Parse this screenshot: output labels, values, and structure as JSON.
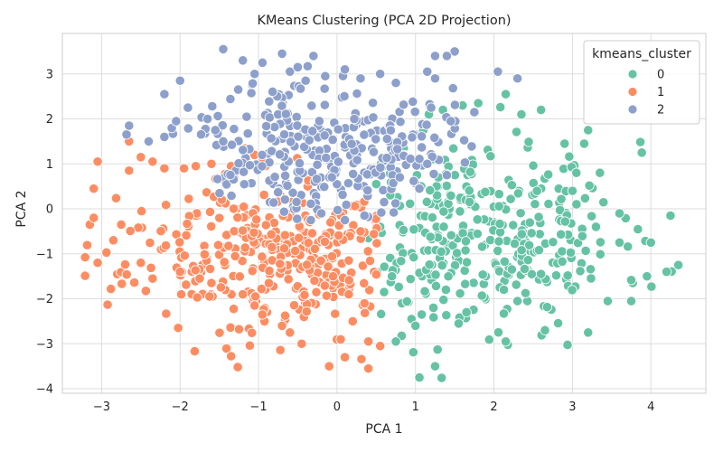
{
  "chart_data": {
    "type": "scatter",
    "title": "KMeans Clustering (PCA 2D Projection)",
    "xlabel": "PCA 1",
    "ylabel": "PCA 2",
    "xlim": [
      -3.5,
      4.7
    ],
    "ylim": [
      -4.1,
      3.9
    ],
    "xticks": [
      -3,
      -2,
      -1,
      0,
      1,
      2,
      3,
      4
    ],
    "yticks": [
      -4,
      -3,
      -2,
      -1,
      0,
      1,
      2,
      3
    ],
    "grid": true,
    "legend": {
      "title": "kmeans_cluster",
      "placement": "top-right"
    },
    "series": [
      {
        "name": "0",
        "color": "#66c2a5",
        "center": [
          1.9,
          -0.6
        ],
        "spread": [
          0.85,
          1.05
        ],
        "count": 330,
        "seed": 11,
        "points": [
          [
            1.05,
            -3.75
          ],
          [
            1.25,
            -3.5
          ],
          [
            0.75,
            -2.95
          ],
          [
            1.55,
            -2.55
          ],
          [
            2.15,
            -2.95
          ],
          [
            2.65,
            -2.7
          ],
          [
            3.2,
            -2.75
          ],
          [
            3.45,
            -2.05
          ],
          [
            3.75,
            -2.05
          ],
          [
            3.95,
            -1.5
          ],
          [
            4.2,
            -1.4
          ],
          [
            4.35,
            -1.25
          ],
          [
            4.0,
            -0.75
          ],
          [
            3.6,
            -0.75
          ],
          [
            3.3,
            -0.4
          ],
          [
            3.6,
            -0.1
          ],
          [
            4.25,
            -0.15
          ],
          [
            3.0,
            0.4
          ],
          [
            3.05,
            0.8
          ],
          [
            3.35,
            0.8
          ],
          [
            3.2,
            1.75
          ],
          [
            3.15,
            1.45
          ],
          [
            2.9,
            1.45
          ],
          [
            2.6,
            2.2
          ],
          [
            2.35,
            2.1
          ],
          [
            2.15,
            2.55
          ],
          [
            1.8,
            2.35
          ],
          [
            1.6,
            2.3
          ],
          [
            1.35,
            2.2
          ],
          [
            1.1,
            1.75
          ],
          [
            0.85,
            1.35
          ],
          [
            0.65,
            1.05
          ],
          [
            0.5,
            0.55
          ],
          [
            0.55,
            -0.4
          ],
          [
            0.4,
            -0.65
          ],
          [
            0.7,
            -1.5
          ],
          [
            0.6,
            -1.85
          ],
          [
            0.95,
            -2.45
          ],
          [
            1.0,
            -2.6
          ],
          [
            1.65,
            -2.3
          ],
          [
            2.3,
            -2.05
          ],
          [
            2.6,
            -1.45
          ]
        ]
      },
      {
        "name": "1",
        "color": "#fc8d62",
        "center": [
          -0.8,
          -1.0
        ],
        "spread": [
          0.95,
          0.85
        ],
        "count": 330,
        "seed": 23,
        "points": [
          [
            -3.15,
            -0.35
          ],
          [
            -3.1,
            0.45
          ],
          [
            -3.1,
            -0.2
          ],
          [
            -3.05,
            -1.2
          ],
          [
            -3.05,
            1.05
          ],
          [
            -2.85,
            -0.7
          ],
          [
            -2.75,
            -0.35
          ],
          [
            -2.65,
            1.5
          ],
          [
            -2.65,
            0.85
          ],
          [
            -2.5,
            1.15
          ],
          [
            -2.35,
            1.05
          ],
          [
            -2.2,
            0.9
          ],
          [
            -1.95,
            0.9
          ],
          [
            -1.8,
            0.95
          ],
          [
            -1.6,
            1.0
          ],
          [
            -1.35,
            0.95
          ],
          [
            -1.05,
            1.2
          ],
          [
            -1.15,
            1.3
          ],
          [
            -0.95,
            1.05
          ],
          [
            -2.5,
            -1.2
          ],
          [
            -2.35,
            -1.55
          ],
          [
            -2.0,
            -1.4
          ],
          [
            -1.75,
            -1.55
          ],
          [
            -1.6,
            -1.65
          ],
          [
            -1.2,
            -1.9
          ],
          [
            -1.05,
            -2.15
          ],
          [
            -0.95,
            -2.35
          ],
          [
            -0.7,
            -2.6
          ],
          [
            -0.6,
            -2.75
          ],
          [
            -0.45,
            -3.0
          ],
          [
            -0.1,
            -3.5
          ],
          [
            0.1,
            -3.3
          ],
          [
            0.4,
            -3.55
          ],
          [
            0.55,
            -3.05
          ],
          [
            0.4,
            -2.95
          ],
          [
            0.2,
            -2.5
          ],
          [
            0.35,
            -2.1
          ],
          [
            0.15,
            -1.9
          ],
          [
            -0.05,
            -1.5
          ],
          [
            0.15,
            -1.15
          ],
          [
            0.3,
            -0.5
          ],
          [
            0.05,
            -0.15
          ]
        ]
      },
      {
        "name": "2",
        "color": "#8da0cb",
        "center": [
          -0.2,
          1.35
        ],
        "spread": [
          0.8,
          0.75
        ],
        "count": 300,
        "seed": 37,
        "points": [
          [
            -1.45,
            3.55
          ],
          [
            -1.2,
            3.3
          ],
          [
            -1.05,
            3.0
          ],
          [
            -0.95,
            3.25
          ],
          [
            -0.7,
            3.45
          ],
          [
            -0.6,
            3.05
          ],
          [
            -0.5,
            3.15
          ],
          [
            -0.4,
            2.85
          ],
          [
            -0.3,
            3.4
          ],
          [
            -0.15,
            2.95
          ],
          [
            0.1,
            3.1
          ],
          [
            0.3,
            2.9
          ],
          [
            0.55,
            3.0
          ],
          [
            0.75,
            2.8
          ],
          [
            1.15,
            3.05
          ],
          [
            1.25,
            3.4
          ],
          [
            1.5,
            3.5
          ],
          [
            1.4,
            3.4
          ],
          [
            1.25,
            2.9
          ],
          [
            2.05,
            3.05
          ],
          [
            2.3,
            2.9
          ],
          [
            -2.0,
            2.85
          ],
          [
            -2.2,
            2.55
          ],
          [
            -2.65,
            1.85
          ],
          [
            -2.4,
            1.5
          ],
          [
            -2.2,
            1.6
          ],
          [
            -2.05,
            1.95
          ],
          [
            -1.9,
            2.25
          ],
          [
            -1.65,
            2.0
          ],
          [
            -1.55,
            1.75
          ],
          [
            -1.45,
            1.5
          ],
          [
            1.15,
            1.0
          ],
          [
            1.4,
            0.75
          ],
          [
            1.05,
            0.45
          ],
          [
            0.8,
            0.7
          ],
          [
            0.6,
            0.15
          ],
          [
            0.35,
            -0.15
          ],
          [
            0.1,
            -0.25
          ],
          [
            -0.2,
            -0.1
          ],
          [
            1.75,
            2.15
          ],
          [
            1.45,
            1.95
          ],
          [
            1.2,
            2.25
          ]
        ]
      }
    ]
  }
}
